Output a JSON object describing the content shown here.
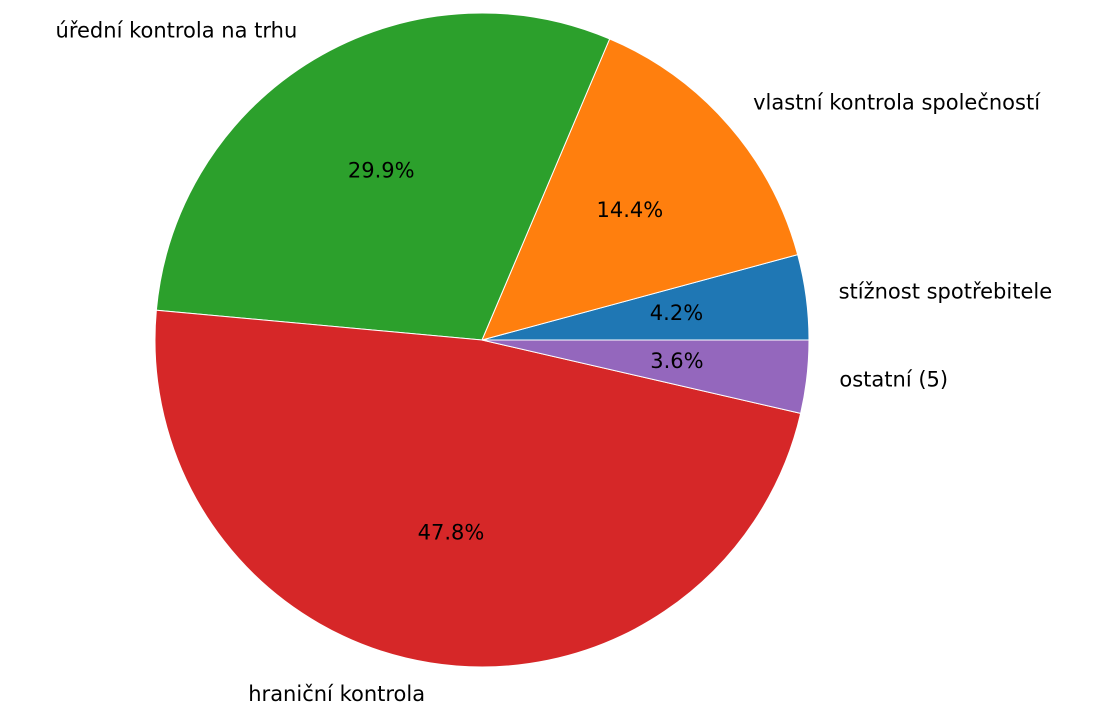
{
  "chart_data": {
    "type": "pie",
    "categories": [
      "stížnost spotřebitele",
      "vlastní kontrola společností",
      "úřední kontrola na trhu",
      "hraniční kontrola",
      "ostatní (5)"
    ],
    "values": [
      4.2,
      14.4,
      29.9,
      47.8,
      3.6
    ],
    "value_labels": [
      "4.2%",
      "14.4%",
      "29.9%",
      "47.8%",
      "3.6%"
    ],
    "colors": [
      "#1f77b4",
      "#ff7f0e",
      "#2ca02c",
      "#d62728",
      "#9467bd"
    ]
  }
}
